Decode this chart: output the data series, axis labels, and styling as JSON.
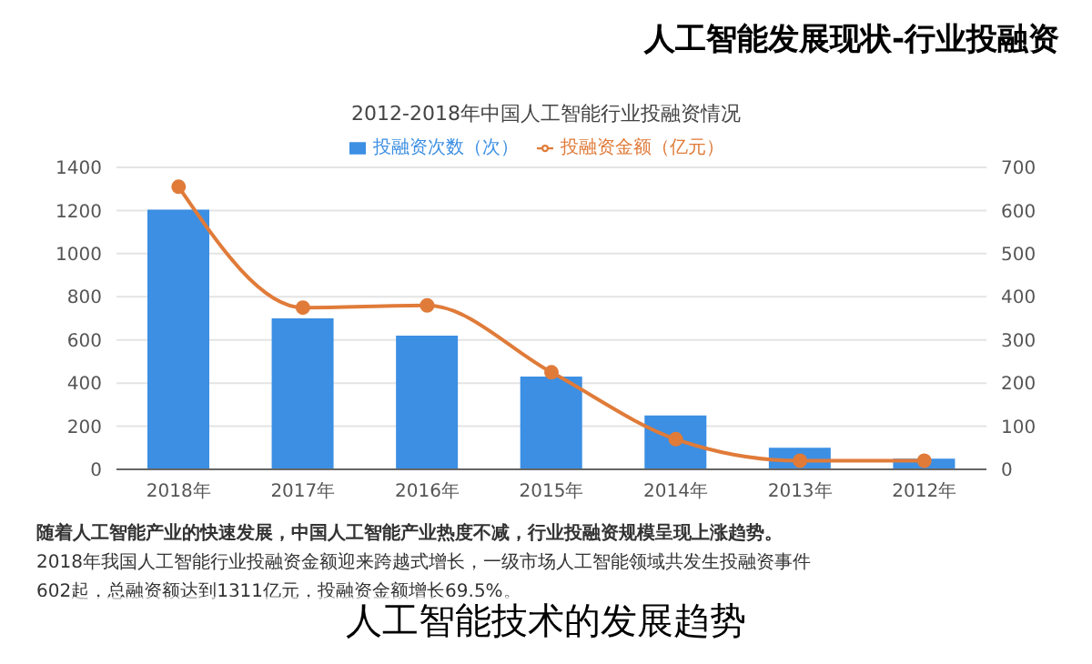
{
  "chart_data": {
    "type": "bar",
    "title": "2012-2018年中国人工智能行业投融资情况",
    "subtitle": "人工智能发展现状-行业投融资",
    "categories": [
      "2018年",
      "2017年",
      "2016年",
      "2015年",
      "2014年",
      "2013年",
      "2012年"
    ],
    "series": [
      {
        "name": "投融资次数（次）",
        "axis": "y2",
        "color": "#3c8fe3",
        "values": [
          602,
          350,
          310,
          215,
          125,
          50,
          25
        ]
      },
      {
        "name": "投融资金额（亿元）",
        "type": "line",
        "axis": "y",
        "color": "#e07b39",
        "values": [
          1310,
          750,
          760,
          450,
          140,
          40,
          40
        ]
      }
    ],
    "ylim": [
      0,
      1400
    ],
    "yticks": [
      0,
      200,
      400,
      600,
      800,
      1000,
      1200,
      1400
    ],
    "y2lim": [
      0,
      700
    ],
    "y2ticks": [
      0,
      100,
      200,
      300,
      400,
      500,
      600,
      700
    ],
    "grid": "y",
    "legend": "top",
    "marker": "circle",
    "line_style": "solid",
    "annotations": [
      "随着人工智能产业的快速发展，中国人工智能产业热度不减，行业投融资规模呈现上涨趋势。",
      "2018年我国人工智能行业投融资金额迎来跨越式增长，一级市场人工智能领域共发生投融资事件",
      "602起，总融资额达到1311亿元，投融资金额增长69.5%。",
      "人工智能技术的发展趋势"
    ]
  }
}
